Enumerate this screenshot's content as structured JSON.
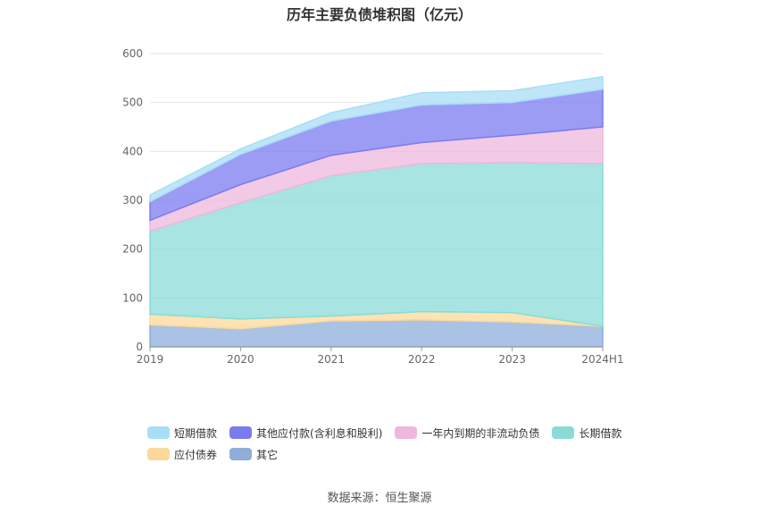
{
  "title": "历年主要负债堆积图（亿元）",
  "source": "数据来源：恒生聚源",
  "chart_data": {
    "type": "area",
    "stacked": true,
    "title": "历年主要负债堆积图（亿元）",
    "xlabel": "",
    "ylabel": "",
    "categories": [
      "2019",
      "2020",
      "2021",
      "2022",
      "2023",
      "2024H1"
    ],
    "ylim": [
      0,
      600
    ],
    "yticks": [
      0,
      100,
      200,
      300,
      400,
      500,
      600
    ],
    "grid": true,
    "legend_position": "bottom",
    "series": [
      {
        "name": "其它",
        "color": "#8eadd9",
        "values": [
          45,
          37,
          53,
          55,
          51,
          42
        ]
      },
      {
        "name": "应付债券",
        "color": "#fcd99a",
        "values": [
          22,
          20,
          10,
          17,
          19,
          0
        ]
      },
      {
        "name": "长期借款",
        "color": "#8adbd8",
        "values": [
          170,
          238,
          287,
          303,
          307,
          333
        ]
      },
      {
        "name": "一年内到期的非流动负债",
        "color": "#eeb8dc",
        "values": [
          22,
          37,
          42,
          43,
          56,
          75
        ]
      },
      {
        "name": "其他应付款(含利息和股利)",
        "color": "#7b7bf0",
        "values": [
          38,
          62,
          70,
          77,
          67,
          77
        ]
      },
      {
        "name": "短期借款",
        "color": "#a8def5",
        "values": [
          14,
          11,
          17,
          25,
          24,
          26
        ]
      }
    ],
    "legend_order": [
      "短期借款",
      "其他应付款(含利息和股利)",
      "一年内到期的非流动负债",
      "长期借款",
      "应付债券",
      "其它"
    ]
  }
}
